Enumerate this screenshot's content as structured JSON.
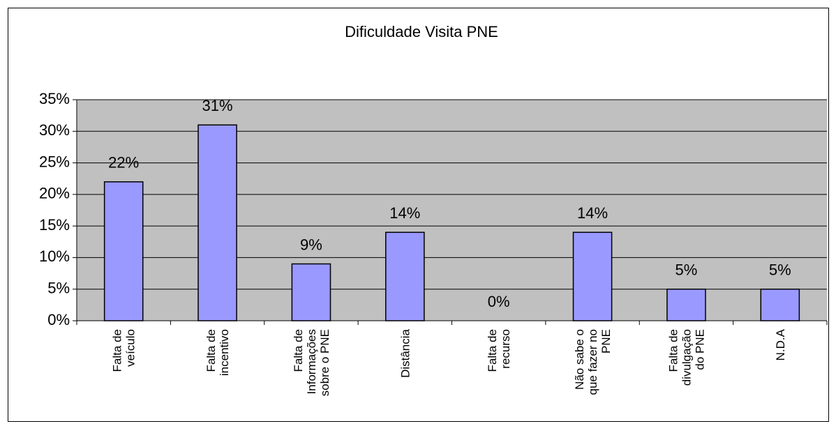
{
  "chart_data": {
    "type": "bar",
    "title": "Dificuldade Visita PNE",
    "categories": [
      "Falta de\nveículo",
      "Falta de\nincentivo",
      "Falta de\nInformações\nsobre o PNE",
      "Distância",
      "Falta de\nrecurso",
      "Não sabe o\nque fazer no\nPNE",
      "Falta de\ndivulgação\ndo PNE",
      "N.D.A"
    ],
    "values": [
      22,
      31,
      9,
      14,
      0,
      14,
      5,
      5
    ],
    "value_labels": [
      "22%",
      "31%",
      "9%",
      "14%",
      "0%",
      "14%",
      "5%",
      "5%"
    ],
    "color": "#9999ff",
    "ylim": [
      0,
      35
    ],
    "yticks": [
      {
        "value": 0,
        "label": "0%"
      },
      {
        "value": 5,
        "label": "5%"
      },
      {
        "value": 10,
        "label": "10%"
      },
      {
        "value": 15,
        "label": "15%"
      },
      {
        "value": 20,
        "label": "20%"
      },
      {
        "value": 25,
        "label": "25%"
      },
      {
        "value": 30,
        "label": "30%"
      },
      {
        "value": 35,
        "label": "35%"
      }
    ],
    "grid": true
  }
}
